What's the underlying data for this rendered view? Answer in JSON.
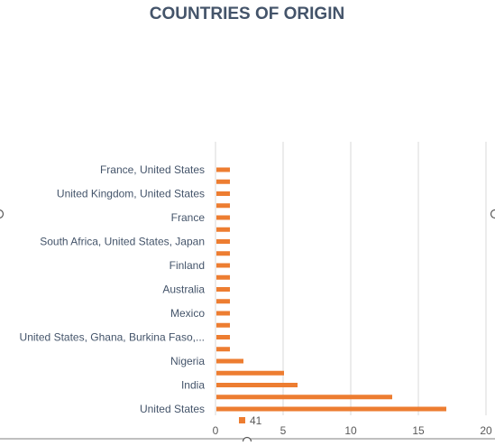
{
  "chart_data": {
    "type": "bar",
    "orientation": "horizontal",
    "title": "COUNTRIES OF ORIGIN",
    "xlabel": "",
    "ylabel": "",
    "xlim": [
      0,
      20
    ],
    "x_ticks": [
      0,
      5,
      10,
      15,
      20
    ],
    "grid": true,
    "legend_position": "bottom",
    "categories": [
      "United States",
      "",
      "India",
      "",
      "Nigeria",
      "",
      "United States, Ghana, Burkina Faso,...",
      "",
      "Mexico",
      "",
      "Australia",
      "",
      "Finland",
      "",
      "South Africa, United States, Japan",
      "",
      "France",
      "",
      "United Kingdom, United States",
      "",
      "France, United States"
    ],
    "series": [
      {
        "name": "41",
        "color": "#ed7d31",
        "values": [
          17,
          13,
          6,
          5,
          2,
          1,
          1,
          1,
          1,
          1,
          1,
          1,
          1,
          1,
          1,
          1,
          1,
          1,
          1,
          1,
          1
        ]
      }
    ]
  }
}
